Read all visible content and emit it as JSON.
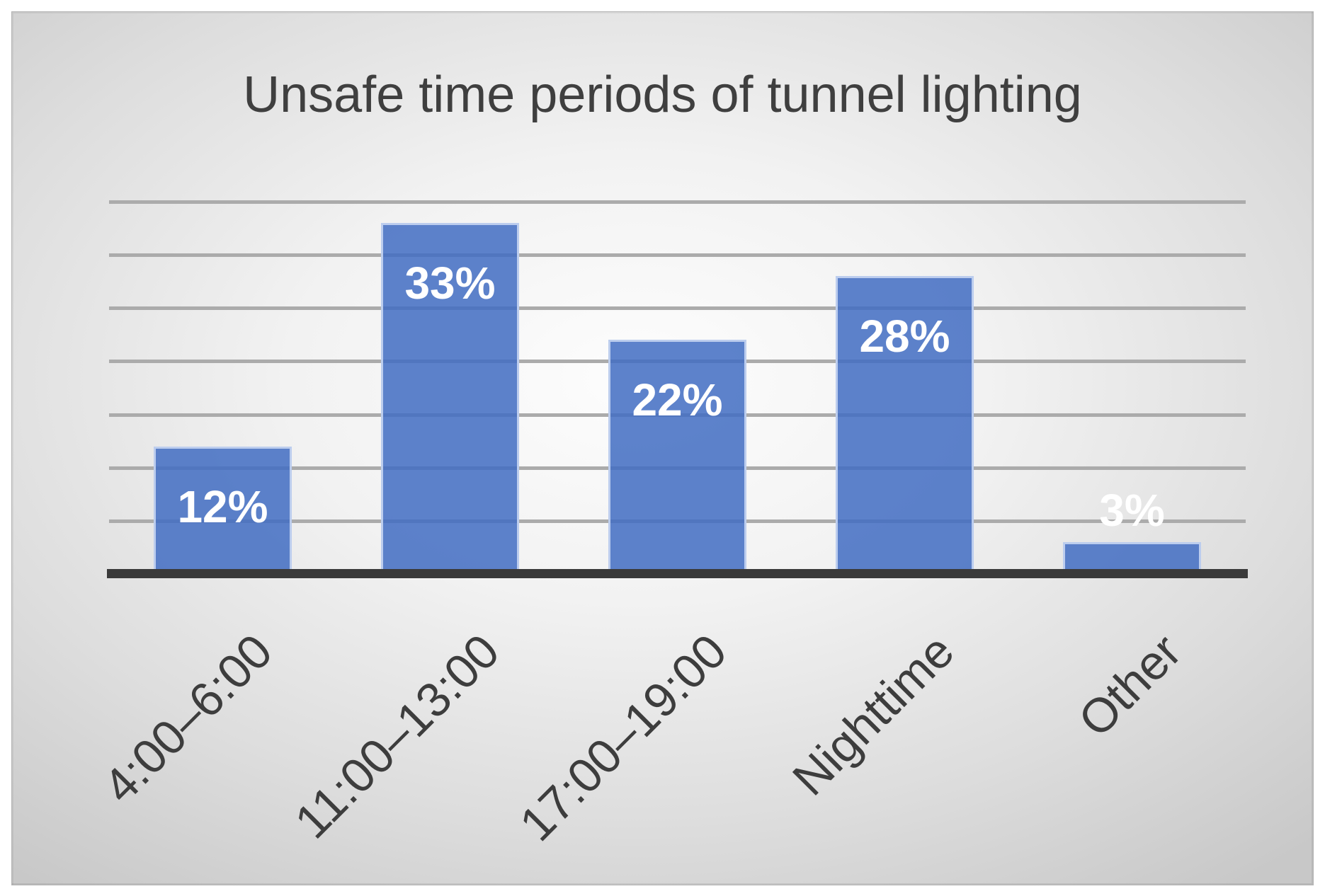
{
  "title": "Unsafe time periods of tunnel lighting",
  "chart_data": {
    "type": "bar",
    "title": "Unsafe time periods of tunnel lighting",
    "categories": [
      "4:00–6:00",
      "11:00–13:00",
      "17:00–19:00",
      "Nighttime",
      "Other"
    ],
    "values": [
      12,
      33,
      22,
      28,
      3
    ],
    "data_labels": [
      "12%",
      "33%",
      "22%",
      "28%",
      "3%"
    ],
    "series": [
      {
        "name": "Unsafe time periods",
        "values": [
          12,
          33,
          22,
          28,
          3
        ]
      }
    ],
    "xlabel": "",
    "ylabel": "",
    "ylim": [
      0,
      35
    ],
    "gridline_step_pct": 5,
    "grid": true,
    "legend_position": "none",
    "y_tick_labels_visible": false,
    "colors": {
      "bar_fill_base": "rgba(65,108,194,0.85)",
      "bar_border": "#bccdee",
      "gridline": "#ababab",
      "axis_line": "#3a3a3a",
      "title_text": "#3f3f3f",
      "category_text": "#3d3d3d",
      "data_label_text": "#ffffff",
      "background_center": "#fdfdfd",
      "background_edge": "#c8c8c8"
    }
  }
}
